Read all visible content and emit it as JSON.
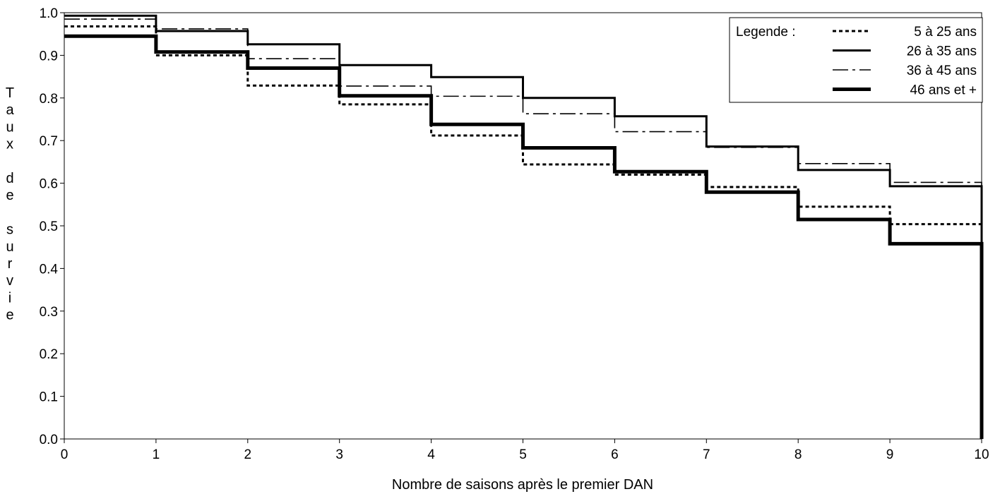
{
  "chart_data": {
    "type": "line",
    "step": true,
    "title": "",
    "xlabel": "Nombre de saisons après le premier DAN",
    "ylabel": "Taux de survie",
    "xlim": [
      0,
      10
    ],
    "ylim": [
      0,
      1
    ],
    "x_ticks": [
      "0",
      "1",
      "2",
      "3",
      "4",
      "5",
      "6",
      "7",
      "8",
      "9",
      "10"
    ],
    "y_ticks": [
      "0.0",
      "0.1",
      "0.2",
      "0.3",
      "0.4",
      "0.5",
      "0.6",
      "0.7",
      "0.8",
      "0.9",
      "1.0"
    ],
    "grid": false,
    "legend": {
      "title": "Legende :",
      "placement": "top-right"
    },
    "series": [
      {
        "name": "5 à 25 ans",
        "style": "dotted",
        "color": "#000000",
        "x": [
          0,
          1,
          2,
          3,
          4,
          5,
          6,
          7,
          8,
          9,
          10
        ],
        "y": [
          0.968,
          0.9,
          0.829,
          0.785,
          0.712,
          0.644,
          0.62,
          0.591,
          0.545,
          0.504,
          0.0
        ]
      },
      {
        "name": "26 à 35 ans",
        "style": "solid",
        "color": "#000000",
        "x": [
          0,
          1,
          2,
          3,
          4,
          5,
          6,
          7,
          8,
          9,
          10
        ],
        "y": [
          0.993,
          0.957,
          0.926,
          0.877,
          0.849,
          0.8,
          0.757,
          0.686,
          0.631,
          0.593,
          0.0
        ]
      },
      {
        "name": "36 à 45 ans",
        "style": "dash-dot",
        "color": "#000000",
        "x": [
          0,
          1,
          2,
          3,
          4,
          5,
          6,
          7,
          8,
          9,
          10
        ],
        "y": [
          0.985,
          0.962,
          0.892,
          0.828,
          0.804,
          0.763,
          0.721,
          0.684,
          0.646,
          0.602,
          0.0
        ]
      },
      {
        "name": "46 ans et +",
        "style": "thick",
        "color": "#000000",
        "x": [
          0,
          1,
          2,
          3,
          4,
          5,
          6,
          7,
          8,
          9,
          10
        ],
        "y": [
          0.945,
          0.908,
          0.87,
          0.805,
          0.738,
          0.683,
          0.627,
          0.579,
          0.515,
          0.458,
          0.0
        ]
      }
    ]
  }
}
